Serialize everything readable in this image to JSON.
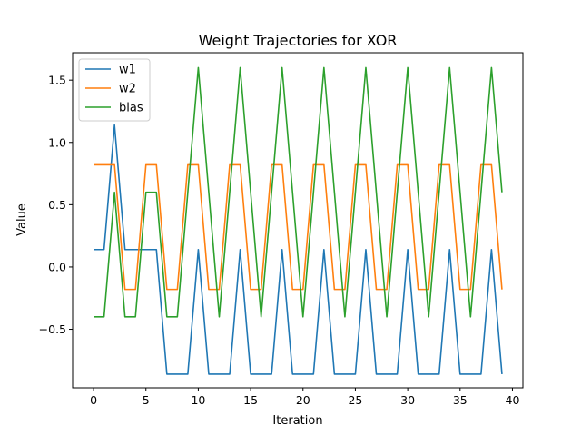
{
  "chart_data": {
    "type": "line",
    "title": "Weight Trajectories for XOR",
    "xlabel": "Iteration",
    "ylabel": "Value",
    "xlim": [
      -2,
      41
    ],
    "ylim": [
      -0.97,
      1.72
    ],
    "xticks": [
      0,
      5,
      10,
      15,
      20,
      25,
      30,
      35,
      40
    ],
    "yticks": [
      -0.5,
      0.0,
      0.5,
      1.0,
      1.5
    ],
    "ytick_labels": [
      "−0.5",
      "0.0",
      "0.5",
      "1.0",
      "1.5"
    ],
    "grid": false,
    "legend": "top-left",
    "x": [
      0,
      1,
      2,
      3,
      4,
      5,
      6,
      7,
      8,
      9,
      10,
      11,
      12,
      13,
      14,
      15,
      16,
      17,
      18,
      19,
      20,
      21,
      22,
      23,
      24,
      25,
      26,
      27,
      28,
      29,
      30,
      31,
      32,
      33,
      34,
      35,
      36,
      37,
      38,
      39
    ],
    "series": [
      {
        "name": "w1",
        "color": "#1f77b4",
        "values": [
          0.14,
          0.14,
          1.14,
          0.14,
          0.14,
          0.14,
          0.14,
          -0.86,
          -0.86,
          -0.86,
          0.14,
          -0.86,
          -0.86,
          -0.86,
          0.14,
          -0.86,
          -0.86,
          -0.86,
          0.14,
          -0.86,
          -0.86,
          -0.86,
          0.14,
          -0.86,
          -0.86,
          -0.86,
          0.14,
          -0.86,
          -0.86,
          -0.86,
          0.14,
          -0.86,
          -0.86,
          -0.86,
          0.14,
          -0.86,
          -0.86,
          -0.86,
          0.14,
          -0.86
        ]
      },
      {
        "name": "w2",
        "color": "#ff7f0e",
        "values": [
          0.82,
          0.82,
          0.82,
          -0.18,
          -0.18,
          0.82,
          0.82,
          -0.18,
          -0.18,
          0.82,
          0.82,
          -0.18,
          -0.18,
          0.82,
          0.82,
          -0.18,
          -0.18,
          0.82,
          0.82,
          -0.18,
          -0.18,
          0.82,
          0.82,
          -0.18,
          -0.18,
          0.82,
          0.82,
          -0.18,
          -0.18,
          0.82,
          0.82,
          -0.18,
          -0.18,
          0.82,
          0.82,
          -0.18,
          -0.18,
          0.82,
          0.82,
          -0.18
        ]
      },
      {
        "name": "bias",
        "color": "#2ca02c",
        "values": [
          -0.4,
          -0.4,
          0.6,
          -0.4,
          -0.4,
          0.6,
          0.6,
          -0.4,
          -0.4,
          0.6,
          1.6,
          0.6,
          -0.4,
          0.6,
          1.6,
          0.6,
          -0.4,
          0.6,
          1.6,
          0.6,
          -0.4,
          0.6,
          1.6,
          0.6,
          -0.4,
          0.6,
          1.6,
          0.6,
          -0.4,
          0.6,
          1.6,
          0.6,
          -0.4,
          0.6,
          1.6,
          0.6,
          -0.4,
          0.6,
          1.6,
          0.6
        ]
      }
    ]
  }
}
